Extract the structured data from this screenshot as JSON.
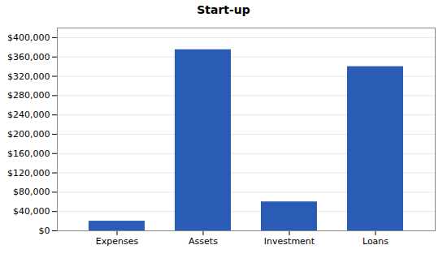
{
  "chart_data": {
    "type": "bar",
    "title": "Start-up",
    "categories": [
      "Expenses",
      "Assets",
      "Investment",
      "Loans"
    ],
    "values": [
      20000,
      375000,
      60000,
      340000
    ],
    "color": "#2A5BB5",
    "ylim": [
      0,
      420000
    ],
    "yticks": [
      {
        "value": 0,
        "label": "$0"
      },
      {
        "value": 40000,
        "label": "$40,000"
      },
      {
        "value": 80000,
        "label": "$80,000"
      },
      {
        "value": 120000,
        "label": "$120,000"
      },
      {
        "value": 160000,
        "label": "$160,000"
      },
      {
        "value": 200000,
        "label": "$200,000"
      },
      {
        "value": 240000,
        "label": "$240,000"
      },
      {
        "value": 280000,
        "label": "$280,000"
      },
      {
        "value": 320000,
        "label": "$320,000"
      },
      {
        "value": 360000,
        "label": "$360,000"
      },
      {
        "value": 400000,
        "label": "$400,000"
      }
    ],
    "grid": true
  }
}
